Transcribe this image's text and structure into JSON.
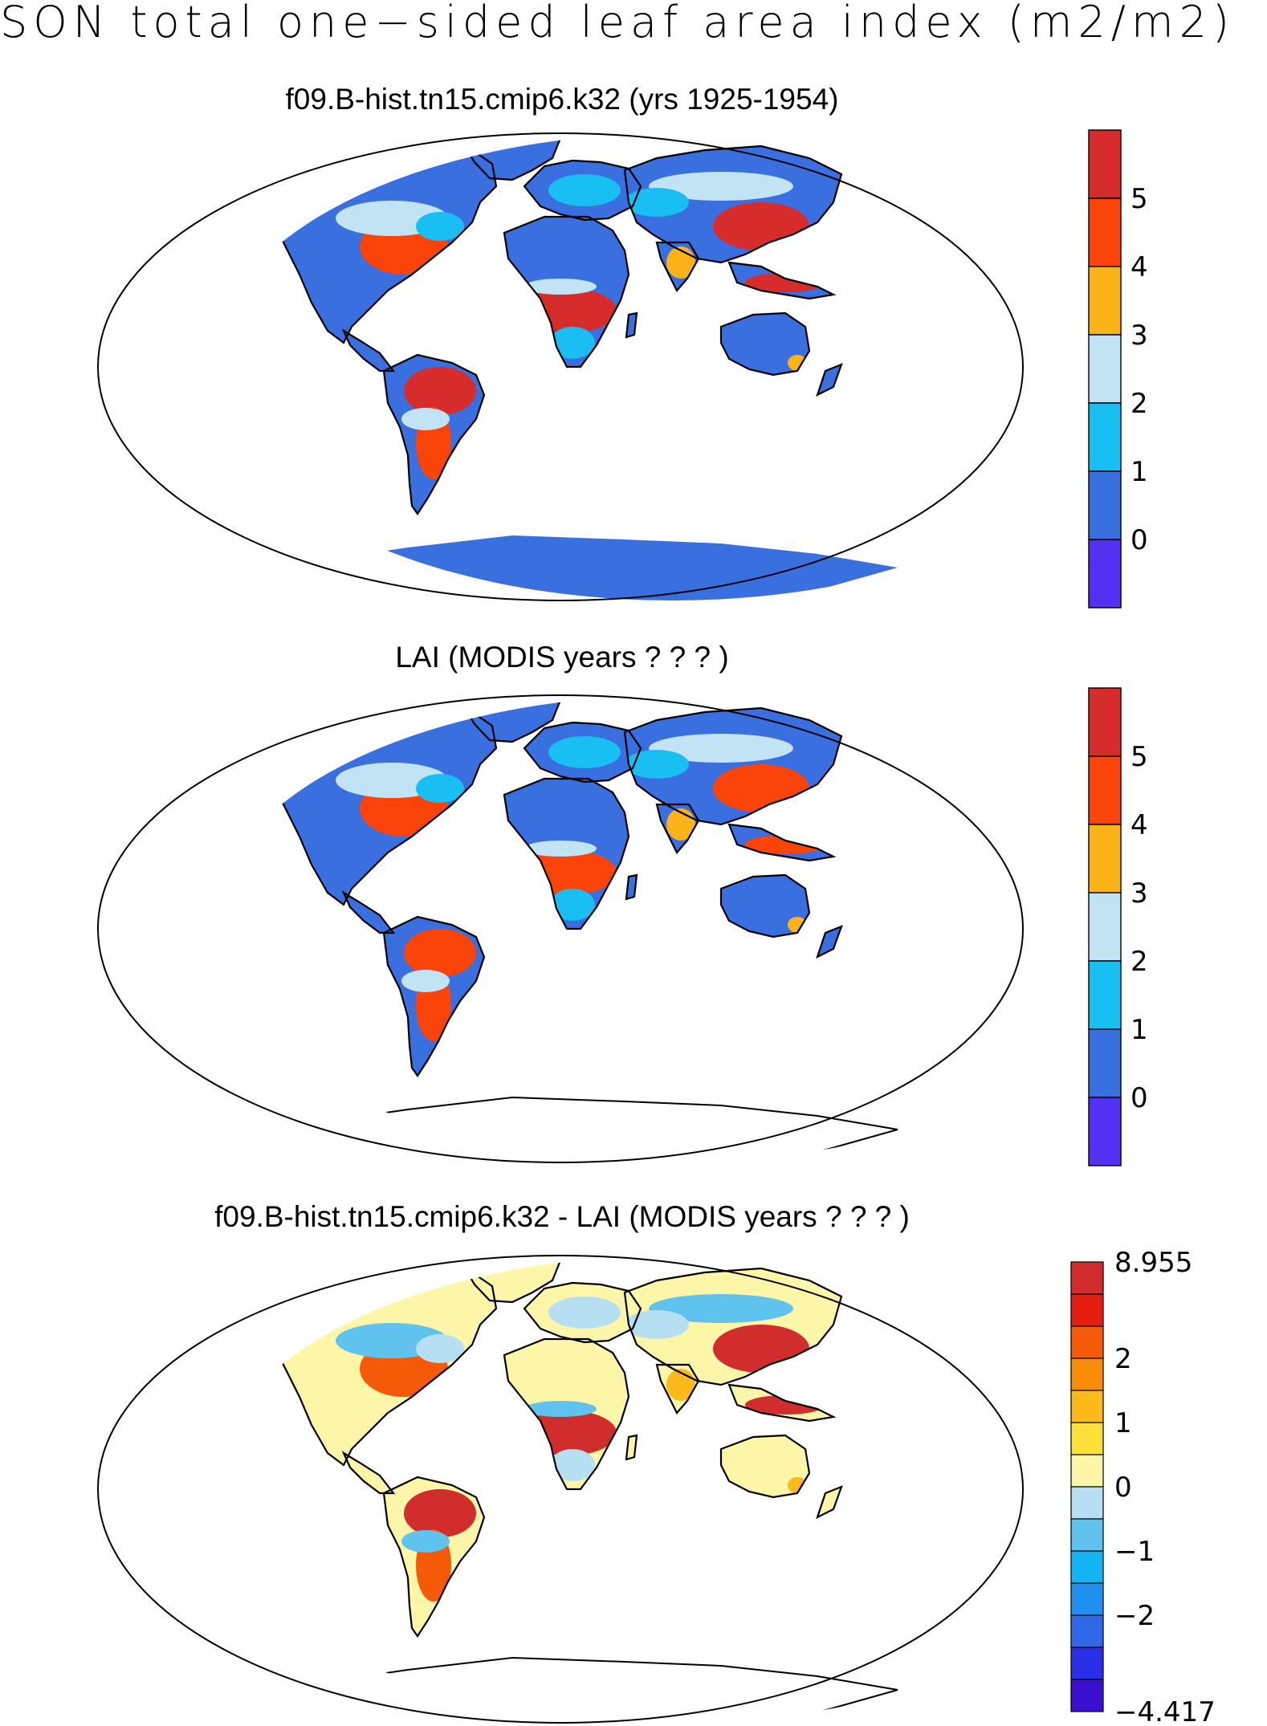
{
  "figure": {
    "title": "SON total one−sided leaf area index (m2/m2)"
  },
  "panels": [
    {
      "title": "f09.B-hist.tn15.cmip6.k32 (yrs 1925-1954)",
      "colorbar": {
        "colors": [
          "#5330f2",
          "#3a6fe0",
          "#19bef2",
          "#c2e3f4",
          "#fbb317",
          "#fb4409",
          "#d62c2c"
        ],
        "tick_labels": [
          "0",
          "1",
          "2",
          "3",
          "4",
          "5"
        ]
      },
      "land_palette": {
        "base": "#3a6fe0",
        "mid": "#19bef2",
        "light": "#c2e3f4",
        "high": "#fb4409",
        "max": "#d62c2c",
        "warm": "#fbb317"
      },
      "antarctica": true
    },
    {
      "title": "LAI (MODIS years ? ? ? )",
      "colorbar": {
        "colors": [
          "#5330f2",
          "#3a6fe0",
          "#19bef2",
          "#c2e3f4",
          "#fbb317",
          "#fb4409",
          "#d62c2c"
        ],
        "tick_labels": [
          "0",
          "1",
          "2",
          "3",
          "4",
          "5"
        ]
      },
      "land_palette": {
        "base": "#3a6fe0",
        "mid": "#19bef2",
        "light": "#c2e3f4",
        "high": "#fb4409",
        "max": "#fb4409",
        "warm": "#fbb317"
      },
      "antarctica": false
    },
    {
      "title": "f09.B-hist.tn15.cmip6.k32 - LAI (MODIS years ? ? ? )",
      "colorbar": {
        "colors": [
          "#3a0fd0",
          "#2a2ee6",
          "#2f67e6",
          "#1f8ff0",
          "#13b3f4",
          "#5fc3ee",
          "#b6dff2",
          "#fdf6a8",
          "#fde03a",
          "#fbb91a",
          "#fb8c0a",
          "#f45a08",
          "#e51d0f",
          "#d22d2d"
        ],
        "tick_labels": [
          "−4.417",
          "−2",
          "−1",
          "0",
          "1",
          "2",
          "8.955"
        ]
      },
      "land_palette": {
        "base": "#fdf6a8",
        "mid": "#b6dff2",
        "light": "#5fc3ee",
        "high": "#f45a08",
        "max": "#d22d2d",
        "warm": "#fbb91a"
      },
      "antarctica": false
    }
  ]
}
